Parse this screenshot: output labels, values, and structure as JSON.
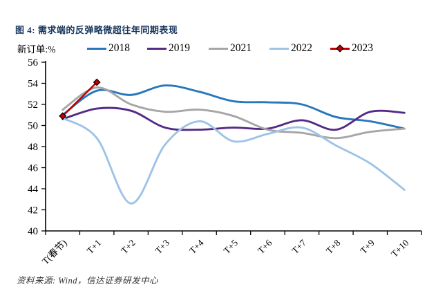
{
  "title": "图 4: 需求端的反弹略微超往年同期表现",
  "source_note": "资料来源: Wind，信达证券研发中心",
  "colors": {
    "title_navy": "#17365D",
    "axis": "#000000",
    "series_2018": "#2776BE",
    "series_2019": "#532B85",
    "series_2021": "#A6A6A6",
    "series_2022": "#9DC3E6",
    "series_2023": "#C00000"
  },
  "chart_data": {
    "type": "line",
    "title": "图 4: 需求端的反弹略微超往年同期表现",
    "ylabel": "新订单:%",
    "xlabel": "",
    "ylim": [
      40,
      56
    ],
    "ytick_step": 2,
    "grid": false,
    "legend_position": "top",
    "categories": [
      "T(春节)",
      "T+1",
      "T+2",
      "T+3",
      "T+4",
      "T+5",
      "T+6",
      "T+7",
      "T+8",
      "T+9",
      "T+10"
    ],
    "series": [
      {
        "name": "2018",
        "color": "#2776BE",
        "smooth": true,
        "marker": "none",
        "values": [
          51.0,
          53.3,
          52.9,
          53.8,
          53.2,
          52.3,
          52.2,
          52.0,
          50.8,
          50.4,
          49.7
        ]
      },
      {
        "name": "2019",
        "color": "#532B85",
        "smooth": true,
        "marker": "none",
        "values": [
          50.6,
          51.6,
          51.4,
          49.8,
          49.6,
          49.8,
          49.7,
          50.5,
          49.6,
          51.3,
          51.2
        ]
      },
      {
        "name": "2021",
        "color": "#A6A6A6",
        "smooth": true,
        "marker": "none",
        "values": [
          51.5,
          53.6,
          52.0,
          51.3,
          51.5,
          50.9,
          49.6,
          49.3,
          48.8,
          49.4,
          49.7
        ]
      },
      {
        "name": "2022",
        "color": "#9DC3E6",
        "smooth": true,
        "marker": "none",
        "values": [
          50.7,
          48.8,
          42.6,
          48.2,
          50.4,
          48.5,
          49.2,
          49.8,
          48.1,
          46.4,
          43.9
        ]
      },
      {
        "name": "2023",
        "color": "#C00000",
        "smooth": false,
        "marker": "diamond",
        "marker_border": "#000000",
        "values": [
          50.9,
          54.1
        ]
      }
    ]
  }
}
